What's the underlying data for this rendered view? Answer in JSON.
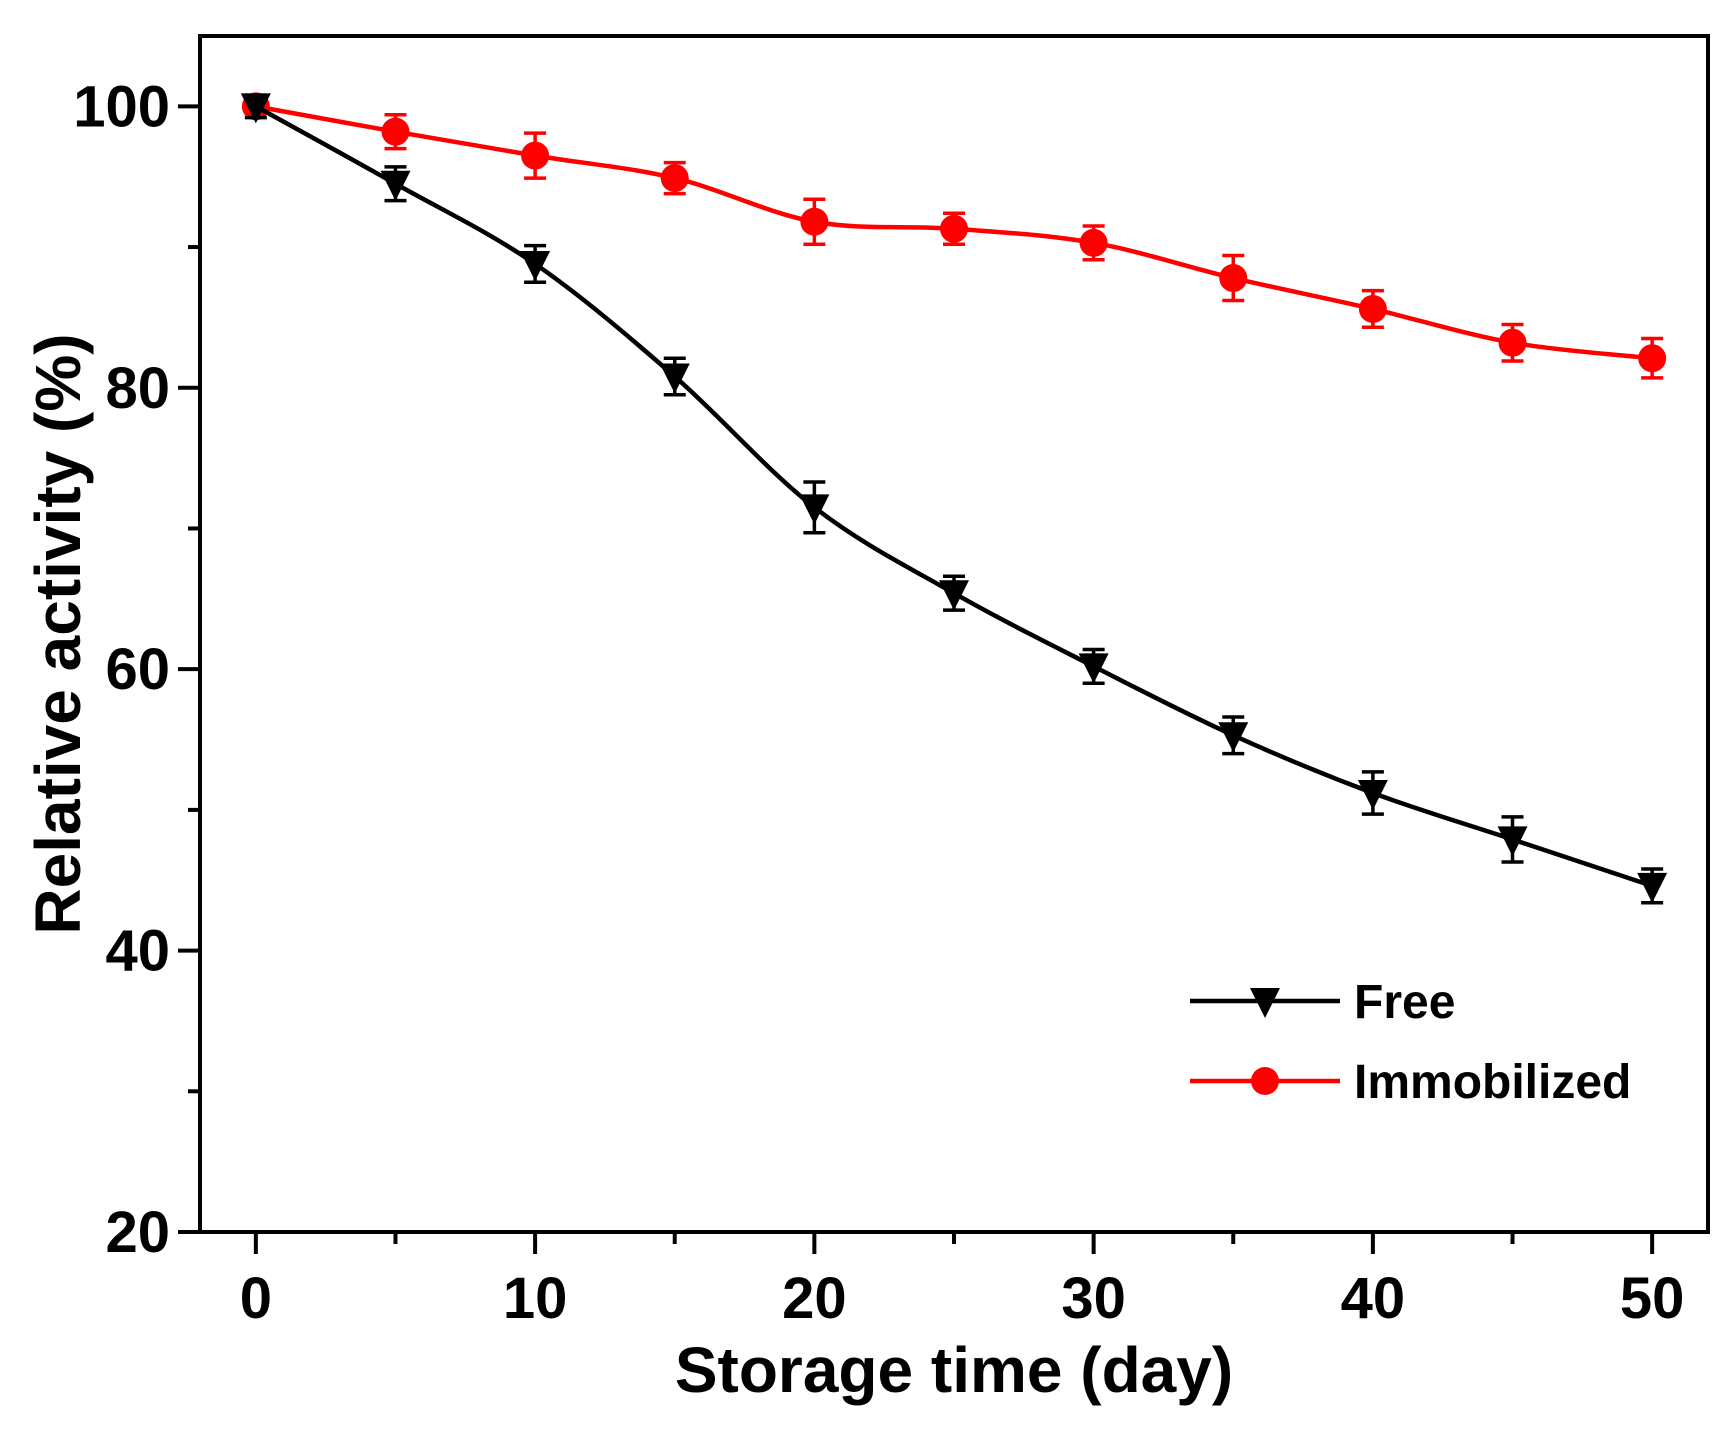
{
  "chart_data": {
    "type": "line",
    "title": "",
    "xlabel": "Storage time (day)",
    "ylabel": "Relative activity (%)",
    "xlim": [
      -2,
      52
    ],
    "ylim": [
      20,
      105
    ],
    "x_ticks": [
      0,
      10,
      20,
      30,
      40,
      50
    ],
    "x_minor_ticks": [
      5,
      15,
      25,
      35,
      45
    ],
    "y_ticks": [
      20,
      40,
      60,
      80,
      100
    ],
    "y_minor_ticks": [
      30,
      50,
      70,
      90
    ],
    "grid": false,
    "legend_position": "bottom-right",
    "x": [
      0,
      5,
      10,
      15,
      20,
      25,
      30,
      35,
      40,
      45,
      50
    ],
    "series": [
      {
        "name": "Free",
        "color": "#000000",
        "marker": "triangle-down",
        "values": [
          100,
          94.5,
          88.8,
          80.8,
          71.5,
          65.4,
          60.2,
          55.3,
          51.2,
          47.9,
          44.6
        ],
        "errors": [
          0.8,
          1.2,
          1.3,
          1.3,
          1.8,
          1.2,
          1.2,
          1.3,
          1.5,
          1.6,
          1.2
        ]
      },
      {
        "name": "Immobilized",
        "color": "#ff0000",
        "marker": "circle",
        "values": [
          100,
          98.2,
          96.5,
          94.9,
          91.8,
          91.3,
          90.3,
          87.8,
          85.6,
          83.2,
          82.1
        ],
        "errors": [
          0.4,
          1.2,
          1.6,
          1.1,
          1.6,
          1.1,
          1.2,
          1.6,
          1.3,
          1.3,
          1.4
        ]
      }
    ]
  }
}
